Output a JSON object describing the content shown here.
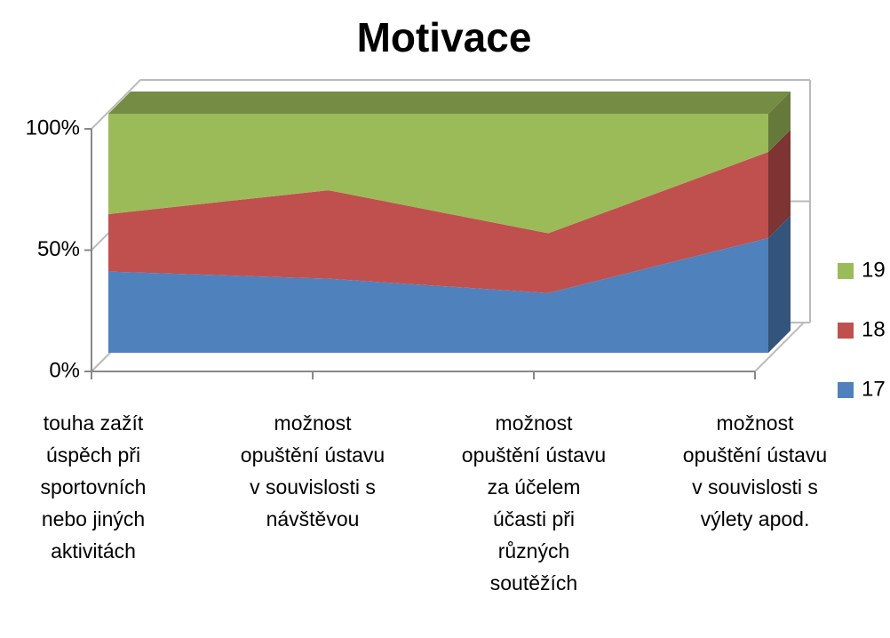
{
  "chart_data": {
    "type": "area",
    "stacked": "percent",
    "title": "Motivace",
    "categories": [
      "touha zažít úspěch při sportovních nebo jiných aktivitách",
      "možnost opuštění ústavu v souvislosti s návštěvou",
      "možnost opuštění ústavu za účelem účasti při různých soutěžích",
      "možnost opuštění ústavu v souvislosti s výlety apod."
    ],
    "series": [
      {
        "name": "17",
        "color": "#4f81bd",
        "values": [
          34,
          31,
          25,
          48
        ]
      },
      {
        "name": "18",
        "color": "#c0504d",
        "values": [
          24,
          37,
          25,
          36
        ]
      },
      {
        "name": "19",
        "color": "#9bbb59",
        "values": [
          42,
          32,
          50,
          16
        ]
      }
    ],
    "ylim": [
      0,
      100
    ],
    "yticks": [
      {
        "value": 0,
        "label": "0%"
      },
      {
        "value": 50,
        "label": "50%"
      },
      {
        "value": 100,
        "label": "100%"
      }
    ],
    "grid": true,
    "legend": "right"
  }
}
